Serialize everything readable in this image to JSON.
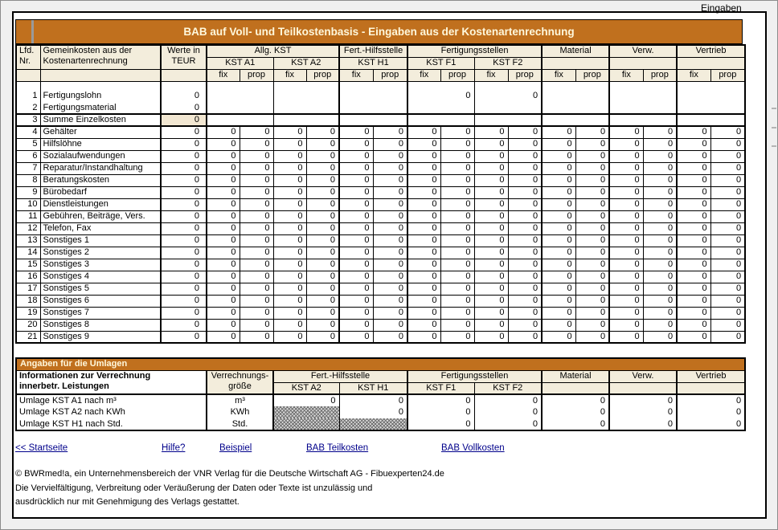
{
  "header": {
    "sheet_label": "Eingaben",
    "title": "BAB auf Voll- und Teilkostenbasis - Eingaben aus der Kostenartenrechnung"
  },
  "colors": {
    "accent_orange": "#C0701E",
    "header_beige": "#F3EDDC",
    "sum_beige": "#F2E7D2",
    "title_cream": "#FFF8DC",
    "link_navy": "#00008B"
  },
  "main_table": {
    "corner": {
      "lfd": "Lfd.\nNr.",
      "name": "Gemeinkosten aus der\nKostenartenrechnung",
      "werte": "Werte in\nTEUR"
    },
    "groups": [
      {
        "label": "Allg. KST",
        "kst": [
          "KST A1",
          "KST A2"
        ]
      },
      {
        "label": "Fert.-Hilfsstelle",
        "kst": [
          "KST H1"
        ]
      },
      {
        "label": "Fertigungsstellen",
        "kst": [
          "KST F1",
          "KST F2"
        ]
      },
      {
        "label": "Material",
        "kst": [
          ""
        ]
      },
      {
        "label": "Verw.",
        "kst": [
          ""
        ]
      },
      {
        "label": "Vertrieb",
        "kst": [
          ""
        ]
      }
    ],
    "sub_labels": [
      "fix",
      "prop"
    ],
    "rows": [
      {
        "nr": "1",
        "label": "Fertigungslohn",
        "werte": "0",
        "type": "merged",
        "group_values": [
          "",
          "",
          "",
          "0",
          "0",
          "",
          "",
          ""
        ]
      },
      {
        "nr": "2",
        "label": "Fertigungsmaterial",
        "werte": "0",
        "type": "merged",
        "group_values": [
          "",
          "",
          "",
          "",
          "",
          "",
          "",
          ""
        ]
      },
      {
        "nr": "3",
        "label": "Summe Einzelkosten",
        "werte": "0",
        "type": "sum",
        "group_values": [
          "",
          "",
          "",
          "",
          "",
          "",
          "",
          ""
        ]
      },
      {
        "nr": "4",
        "label": "Gehälter",
        "werte": "0",
        "type": "detail",
        "fill": "0"
      },
      {
        "nr": "5",
        "label": "Hilfslöhne",
        "werte": "0",
        "type": "detail",
        "fill": "0"
      },
      {
        "nr": "6",
        "label": "Sozialaufwendungen",
        "werte": "0",
        "type": "detail",
        "fill": "0"
      },
      {
        "nr": "7",
        "label": "Reparatur/Instandhaltung",
        "werte": "0",
        "type": "detail",
        "fill": "0"
      },
      {
        "nr": "8",
        "label": "Beratungskosten",
        "werte": "0",
        "type": "detail",
        "fill": "0"
      },
      {
        "nr": "9",
        "label": "Bürobedarf",
        "werte": "0",
        "type": "detail",
        "fill": "0"
      },
      {
        "nr": "10",
        "label": "Dienstleistungen",
        "werte": "0",
        "type": "detail",
        "fill": "0"
      },
      {
        "nr": "11",
        "label": "Gebühren, Beiträge, Vers.",
        "werte": "0",
        "type": "detail",
        "fill": "0"
      },
      {
        "nr": "12",
        "label": "Telefon, Fax",
        "werte": "0",
        "type": "detail",
        "fill": "0"
      },
      {
        "nr": "13",
        "label": "Sonstiges 1",
        "werte": "0",
        "type": "detail",
        "fill": "0"
      },
      {
        "nr": "14",
        "label": "Sonstiges 2",
        "werte": "0",
        "type": "detail",
        "fill": "0"
      },
      {
        "nr": "15",
        "label": "Sonstiges 3",
        "werte": "0",
        "type": "detail",
        "fill": "0"
      },
      {
        "nr": "16",
        "label": "Sonstiges 4",
        "werte": "0",
        "type": "detail",
        "fill": "0"
      },
      {
        "nr": "17",
        "label": "Sonstiges 5",
        "werte": "0",
        "type": "detail",
        "fill": "0"
      },
      {
        "nr": "18",
        "label": "Sonstiges 6",
        "werte": "0",
        "type": "detail",
        "fill": "0"
      },
      {
        "nr": "19",
        "label": "Sonstiges 7",
        "werte": "0",
        "type": "detail",
        "fill": "0"
      },
      {
        "nr": "20",
        "label": "Sonstiges 8",
        "werte": "0",
        "type": "detail",
        "fill": "0"
      },
      {
        "nr": "21",
        "label": "Sonstiges 9",
        "werte": "0",
        "type": "detail",
        "fill": "0"
      }
    ]
  },
  "umlagen": {
    "bar_title": "Angaben für die Umlagen",
    "info_header": "Informationen zur Verrechnung\ninnerbetr. Leistungen",
    "verrechnung_header": "Verrechnungs-\ngröße",
    "groups": [
      {
        "label": "Fert.-Hilfsstelle",
        "kst": [
          "KST A2",
          "KST H1"
        ]
      },
      {
        "label": "Fertigungsstellen",
        "kst": [
          "KST F1",
          "KST F2"
        ]
      },
      {
        "label": "Material",
        "kst": [
          ""
        ]
      },
      {
        "label": "Verw.",
        "kst": [
          ""
        ]
      },
      {
        "label": "Vertrieb",
        "kst": [
          ""
        ]
      }
    ],
    "rows": [
      {
        "label": "Umlage KST A1 nach m³",
        "unit": "m³",
        "cells": [
          "0",
          "0",
          "0",
          "0",
          "0",
          "0",
          "0"
        ]
      },
      {
        "label": "Umlage KST A2 nach KWh",
        "unit": "KWh",
        "cells": [
          "hatch",
          "0",
          "0",
          "0",
          "0",
          "0",
          "0"
        ]
      },
      {
        "label": "Umlage KST H1 nach Std.",
        "unit": "Std.",
        "cells": [
          "hatch",
          "hatch",
          "0",
          "0",
          "0",
          "0",
          "0"
        ]
      }
    ]
  },
  "links": [
    {
      "label": "<< Startseite"
    },
    {
      "label": "Hilfe?"
    },
    {
      "label": "Beispiel"
    },
    {
      "label": "BAB Teilkosten"
    },
    {
      "label": "BAB Vollkosten"
    }
  ],
  "footer_lines": [
    "© BWRmed!a, ein Unternehmensbereich der VNR Verlag für die Deutsche Wirtschaft AG - Fibuexperten24.de",
    "Die Vervielfältigung, Verbreitung oder Veräußerung der Daten oder Texte ist unzulässig und",
    "ausdrücklich nur mit Genehmigung des Verlags gestattet."
  ]
}
